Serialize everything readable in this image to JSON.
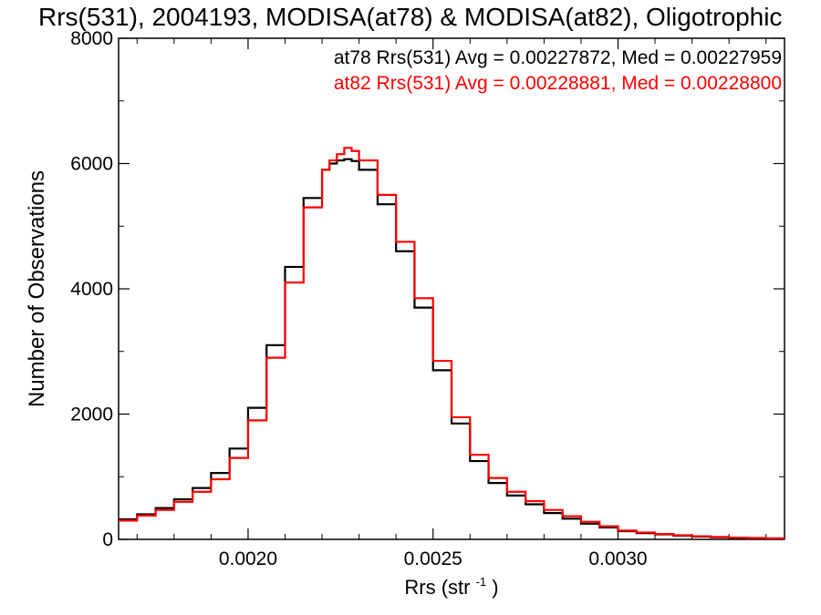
{
  "chart_data": {
    "type": "line",
    "title": "Rrs(531), 2004193, MODISA(at78) & MODISA(at82), Oligotrophic",
    "xlabel": "Rrs (str",
    "xlabel_superscript": "-1",
    "xlabel_suffix": ")",
    "ylabel": "Number of Observations",
    "xlim": [
      0.00165,
      0.00345
    ],
    "ylim": [
      0,
      8000
    ],
    "x_ticks": [
      0.002,
      0.0025,
      0.003
    ],
    "x_tick_labels": [
      "0.0020",
      "0.0025",
      "0.0030"
    ],
    "y_ticks": [
      0,
      2000,
      4000,
      6000,
      8000
    ],
    "y_tick_labels": [
      "0",
      "2000",
      "4000",
      "6000",
      "8000"
    ],
    "legend_placement": "top-right",
    "grid": false,
    "series": [
      {
        "name": "at78",
        "color": "#000000",
        "stats_text": "at78 Rrs(531) Avg = 0.00227872, Med = 0.00227959",
        "x": [
          0.00165,
          0.0017,
          0.00175,
          0.0018,
          0.00185,
          0.0019,
          0.00195,
          0.002,
          0.00205,
          0.0021,
          0.00215,
          0.0022,
          0.00222,
          0.00224,
          0.00226,
          0.00228,
          0.0023,
          0.00235,
          0.0024,
          0.00245,
          0.0025,
          0.00255,
          0.0026,
          0.00265,
          0.0027,
          0.00275,
          0.0028,
          0.00285,
          0.0029,
          0.00295,
          0.003,
          0.00305,
          0.0031,
          0.00315,
          0.0032,
          0.00325,
          0.0033,
          0.00335,
          0.0034,
          0.00345
        ],
        "y": [
          320,
          400,
          500,
          640,
          820,
          1060,
          1450,
          2100,
          3100,
          4350,
          5450,
          5900,
          6000,
          6050,
          6070,
          6040,
          5900,
          5350,
          4600,
          3700,
          2700,
          1850,
          1250,
          900,
          700,
          560,
          420,
          330,
          250,
          190,
          130,
          100,
          80,
          60,
          45,
          35,
          25,
          20,
          15,
          10
        ]
      },
      {
        "name": "at82",
        "color": "#ff0000",
        "stats_text": "at82 Rrs(531) Avg = 0.00228881, Med = 0.00228800",
        "x": [
          0.00165,
          0.0017,
          0.00175,
          0.0018,
          0.00185,
          0.0019,
          0.00195,
          0.002,
          0.00205,
          0.0021,
          0.00215,
          0.0022,
          0.00222,
          0.00224,
          0.00226,
          0.00228,
          0.0023,
          0.00235,
          0.0024,
          0.00245,
          0.0025,
          0.00255,
          0.0026,
          0.00265,
          0.0027,
          0.00275,
          0.0028,
          0.00285,
          0.0029,
          0.00295,
          0.003,
          0.00305,
          0.0031,
          0.00315,
          0.0032,
          0.00325,
          0.0033,
          0.00335,
          0.0034,
          0.00345
        ],
        "y": [
          300,
          380,
          470,
          600,
          760,
          960,
          1300,
          1900,
          2900,
          4100,
          5300,
          5900,
          6050,
          6150,
          6250,
          6200,
          6050,
          5500,
          4750,
          3850,
          2850,
          1950,
          1350,
          980,
          760,
          610,
          470,
          370,
          280,
          210,
          140,
          110,
          85,
          65,
          50,
          38,
          28,
          22,
          16,
          10
        ]
      }
    ]
  }
}
